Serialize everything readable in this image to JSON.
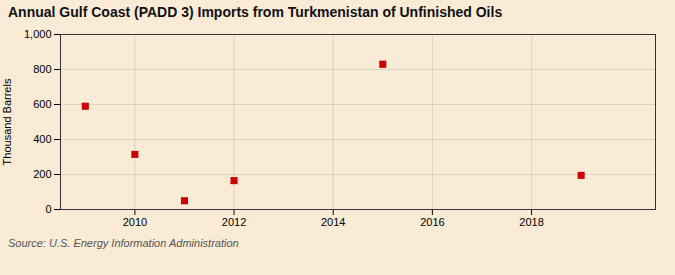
{
  "chart_data": {
    "type": "scatter",
    "title": "Annual Gulf Coast (PADD 3) Imports from Turkmenistan of Unfinished Oils",
    "ylabel": "Thousand Barrels",
    "source": "Source: U.S. Energy Information Administration",
    "x": [
      2009,
      2010,
      2011,
      2012,
      2015,
      2019
    ],
    "values": [
      590,
      315,
      50,
      165,
      830,
      195
    ],
    "color": "#cc0000",
    "marker": "square",
    "xlim": [
      2008.5,
      2020.5
    ],
    "xticks": [
      2010,
      2012,
      2014,
      2016,
      2018
    ],
    "ylim": [
      0,
      1000
    ],
    "yticks": [
      0,
      200,
      400,
      600,
      800,
      {
        "value": 1000,
        "label": "1,000"
      }
    ],
    "grid": true
  }
}
